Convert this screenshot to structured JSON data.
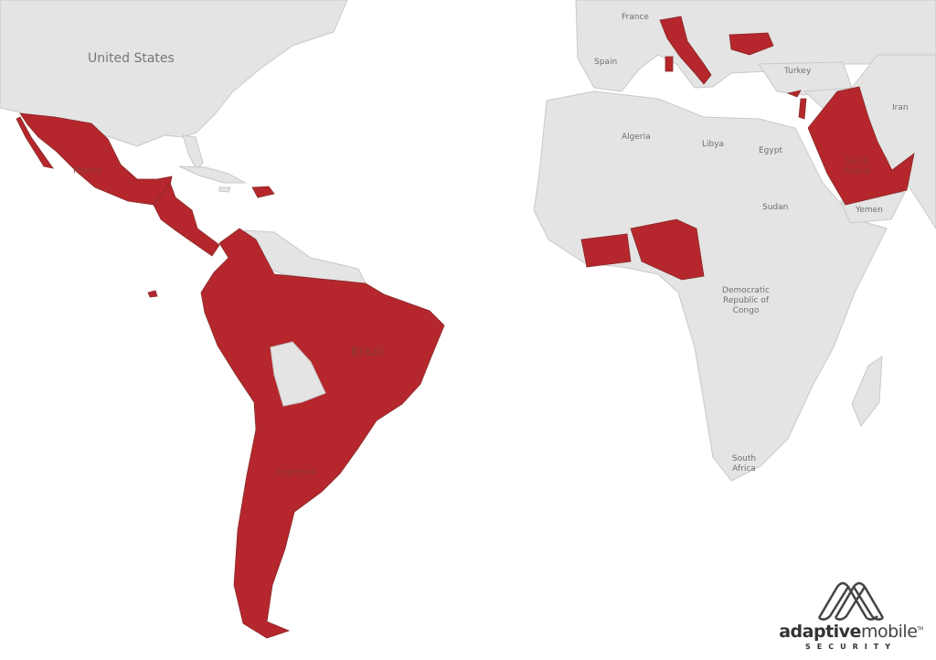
{
  "map": {
    "highlight_color": "#b5272c",
    "land_color": "#e4e4e4",
    "water_color": "#ffffff",
    "highlighted_regions": [
      "Mexico",
      "Central America",
      "Dominican Republic",
      "Colombia",
      "Ecuador",
      "Peru",
      "Brazil",
      "Paraguay",
      "Uruguay",
      "Argentina",
      "Chile",
      "Italy",
      "Bulgaria",
      "Cyprus",
      "Lebanon",
      "Iraq",
      "Saudi Arabia",
      "Kuwait",
      "Qatar",
      "United Arab Emirates",
      "Oman",
      "Ghana",
      "Cote d'Ivoire",
      "Nigeria",
      "Cameroon"
    ],
    "labels": {
      "united_states": "United States",
      "mexico": "Mexico",
      "brazil": "Brazil",
      "argentina": "Argentina",
      "france": "France",
      "spain": "Spain",
      "turkey": "Turkey",
      "iran": "Iran",
      "algeria": "Algeria",
      "libya": "Libya",
      "egypt": "Egypt",
      "sudan": "Sudan",
      "saudi_arabia": "Saudi Arabia",
      "yemen": "Yemen",
      "drc": "Democratic Republic of Congo",
      "south_africa": "South Africa"
    }
  },
  "logo": {
    "brand_bold": "adaptive",
    "brand_light": "mobile",
    "tagline": "SECURITY",
    "trademark": "TM"
  }
}
